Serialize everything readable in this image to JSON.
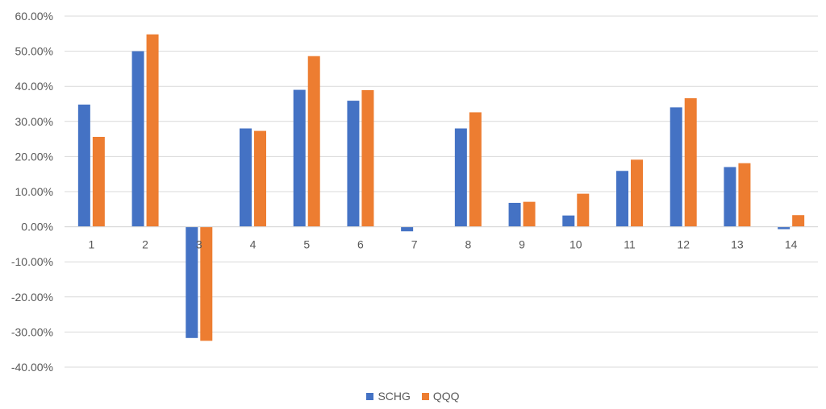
{
  "chart_data": {
    "type": "bar",
    "categories": [
      "1",
      "2",
      "3",
      "4",
      "5",
      "6",
      "7",
      "8",
      "9",
      "10",
      "11",
      "12",
      "13",
      "14"
    ],
    "series": [
      {
        "name": "SCHG",
        "color": "#4472C4",
        "values": [
          34.8,
          50.0,
          -31.7,
          28.0,
          39.0,
          35.9,
          -1.3,
          28.0,
          6.8,
          3.2,
          15.9,
          34.0,
          17.0,
          -0.7
        ]
      },
      {
        "name": "QQQ",
        "color": "#ED7D31",
        "values": [
          25.6,
          54.8,
          -32.5,
          27.3,
          48.6,
          38.9,
          0.0,
          32.6,
          7.1,
          9.4,
          19.1,
          36.6,
          18.1,
          3.3
        ]
      }
    ],
    "ylim": [
      -40,
      60
    ],
    "ytick_labels": [
      "60.00%",
      "50.00%",
      "40.00%",
      "30.00%",
      "20.00%",
      "10.00%",
      "0.00%",
      "-10.00%",
      "-20.00%",
      "-30.00%",
      "-40.00%"
    ],
    "grid": true,
    "legend_position": "bottom"
  }
}
